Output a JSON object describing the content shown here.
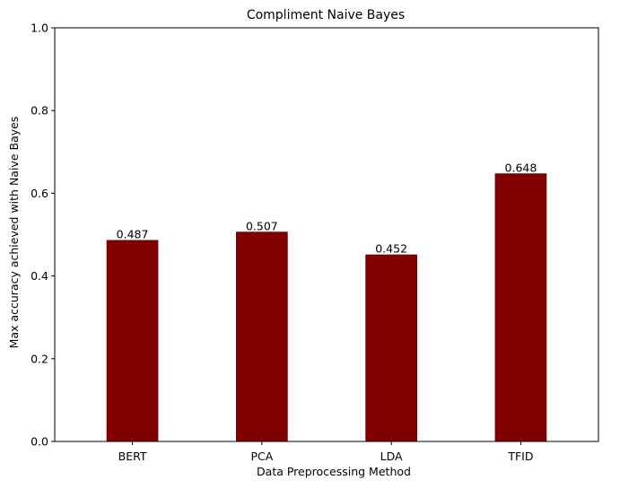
{
  "chart_data": {
    "type": "bar",
    "title": "Compliment Naive Bayes",
    "xlabel": "Data Preprocessing Method",
    "ylabel": "Max accuracy achieved with Naive Bayes",
    "categories": [
      "BERT",
      "PCA",
      "LDA",
      "TFID"
    ],
    "values": [
      0.487,
      0.507,
      0.452,
      0.648
    ],
    "data_labels": [
      "0.487",
      "0.507",
      "0.452",
      "0.648"
    ],
    "ylim": [
      0,
      1.0
    ],
    "yticks": [
      "0.0",
      "0.2",
      "0.4",
      "0.6",
      "0.8",
      "1.0"
    ],
    "grid": false,
    "bar_color": "#800000"
  }
}
